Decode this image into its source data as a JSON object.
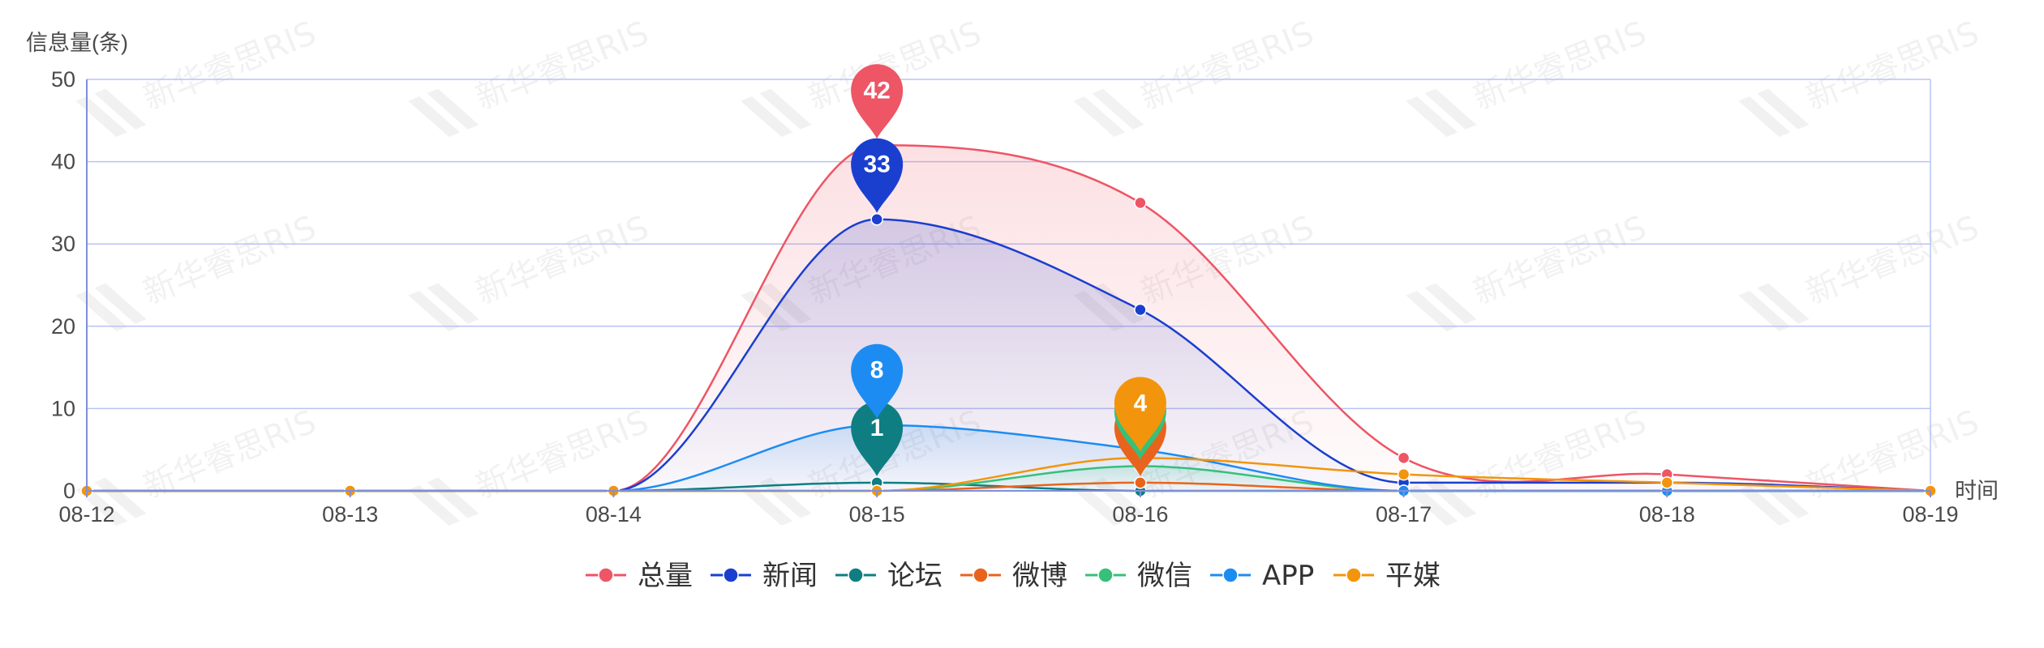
{
  "chart_data": {
    "type": "line",
    "smooth": true,
    "ylabel": "信息量(条)",
    "xlabel": "时间",
    "ylim": [
      0,
      50
    ],
    "yticks": [
      0,
      10,
      20,
      30,
      40,
      50
    ],
    "categories": [
      "08-12",
      "08-13",
      "08-14",
      "08-15",
      "08-16",
      "08-17",
      "08-18",
      "08-19"
    ],
    "grid": true,
    "legend_position": "bottom-center",
    "watermark": "新华睿思RIS",
    "series": [
      {
        "name": "总量",
        "color": "#ee5565",
        "values": [
          0,
          0,
          0,
          42,
          35,
          4,
          2,
          0
        ],
        "area": true,
        "max_label": "42",
        "max_index": 3
      },
      {
        "name": "新闻",
        "color": "#1a3fcf",
        "values": [
          0,
          0,
          0,
          33,
          22,
          1,
          1,
          0
        ],
        "area": true,
        "max_label": "33",
        "max_index": 3
      },
      {
        "name": "论坛",
        "color": "#0e7e82",
        "values": [
          0,
          0,
          0,
          1,
          0,
          0,
          0,
          0
        ],
        "area": false,
        "max_label": "1",
        "max_index": 3
      },
      {
        "name": "微博",
        "color": "#e8641c",
        "values": [
          0,
          0,
          0,
          0,
          1,
          0,
          0,
          0
        ],
        "area": false,
        "max_label": "1",
        "max_index": 4
      },
      {
        "name": "微信",
        "color": "#36c07a",
        "values": [
          0,
          0,
          0,
          0,
          3,
          0,
          0,
          0
        ],
        "area": true,
        "max_label": "3",
        "max_index": 4
      },
      {
        "name": "APP",
        "color": "#1c8cf2",
        "values": [
          0,
          0,
          0,
          8,
          5,
          0,
          0,
          0
        ],
        "area": true,
        "max_label": "8",
        "max_index": 3
      },
      {
        "name": "平媒",
        "color": "#f2950c",
        "values": [
          0,
          0,
          0,
          0,
          4,
          2,
          1,
          0
        ],
        "area": false,
        "max_label": "4",
        "max_index": 4
      }
    ]
  }
}
